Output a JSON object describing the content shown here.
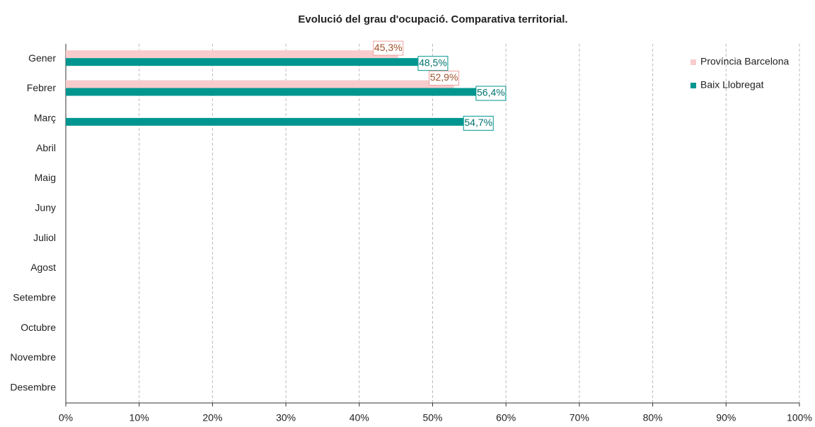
{
  "chart_data": {
    "type": "bar",
    "orientation": "horizontal",
    "title": "Evolució del grau d'ocupació. Comparativa territorial.",
    "categories": [
      "Gener",
      "Febrer",
      "Març",
      "Abril",
      "Maig",
      "Juny",
      "Juliol",
      "Agost",
      "Setembre",
      "Octubre",
      "Novembre",
      "Desembre"
    ],
    "series": [
      {
        "name": "Província Barcelona",
        "color": "#f8cccc",
        "label_color": "#a0522d",
        "values": [
          45.3,
          52.9,
          null,
          null,
          null,
          null,
          null,
          null,
          null,
          null,
          null,
          null
        ],
        "value_labels": [
          "45,3%",
          "52,9%",
          null,
          null,
          null,
          null,
          null,
          null,
          null,
          null,
          null,
          null
        ]
      },
      {
        "name": "Baix Llobregat",
        "color": "#00968f",
        "label_color": "#00736e",
        "values": [
          48.5,
          56.4,
          54.7,
          null,
          null,
          null,
          null,
          null,
          null,
          null,
          null,
          null
        ],
        "value_labels": [
          "48,5%",
          "56,4%",
          "54,7%",
          null,
          null,
          null,
          null,
          null,
          null,
          null,
          null,
          null
        ]
      }
    ],
    "xlim": [
      0,
      100
    ],
    "xticks": [
      {
        "value": 0,
        "label": "0%"
      },
      {
        "value": 10,
        "label": "10%"
      },
      {
        "value": 20,
        "label": "20%"
      },
      {
        "value": 30,
        "label": "30%"
      },
      {
        "value": 40,
        "label": "40%"
      },
      {
        "value": 50,
        "label": "50%"
      },
      {
        "value": 60,
        "label": "60%"
      },
      {
        "value": 70,
        "label": "70%"
      },
      {
        "value": 80,
        "label": "80%"
      },
      {
        "value": 90,
        "label": "90%"
      },
      {
        "value": 100,
        "label": "100%"
      }
    ],
    "grid": true,
    "legend": "upper right"
  }
}
